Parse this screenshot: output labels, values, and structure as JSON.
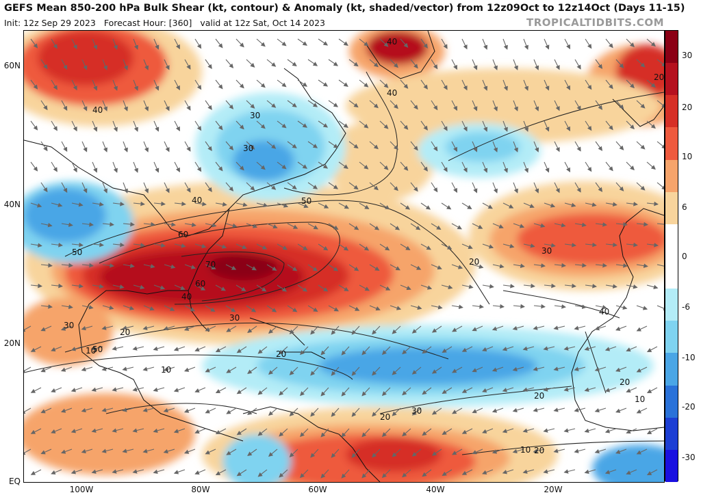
{
  "header": {
    "title": "GEFS Mean 850-200 hPa Bulk Shear (kt, contour) & Anomaly (kt, shaded/vector) from 12z09Oct to 12z14Oct (Days 11-15)",
    "init": "Init: 12z Sep 29 2023",
    "forecast_hour": "Forecast Hour: [360]",
    "valid": "valid at 12z Sat, Oct 14 2023",
    "brand": "TROPICALTIDBITS.COM"
  },
  "axes": {
    "lat_labels": [
      "60N",
      "40N",
      "20N",
      "EQ"
    ],
    "lon_labels": [
      "100W",
      "80W",
      "60W",
      "40W",
      "20W"
    ]
  },
  "colorbar": {
    "labels": [
      "30",
      "20",
      "10",
      "6",
      "0",
      "-6",
      "-10",
      "-20",
      "-30"
    ],
    "colors": [
      "#8b0015",
      "#b5101e",
      "#d62f26",
      "#ee5a3e",
      "#f6a46b",
      "#f8d49c",
      "#ffffff",
      "#ffffff",
      "#b3ecf7",
      "#7fd3f0",
      "#4aa6e6",
      "#2a72d9",
      "#1d3fd4",
      "#1a10e0"
    ]
  },
  "contours": {
    "labels": [
      "40",
      "40",
      "40",
      "20",
      "30",
      "30",
      "40",
      "50",
      "60",
      "70",
      "60",
      "50",
      "40",
      "30",
      "20",
      "30",
      "50",
      "20",
      "10",
      "10",
      "20",
      "30",
      "20",
      "20",
      "30",
      "40",
      "20",
      "10",
      "10",
      "20"
    ]
  }
}
